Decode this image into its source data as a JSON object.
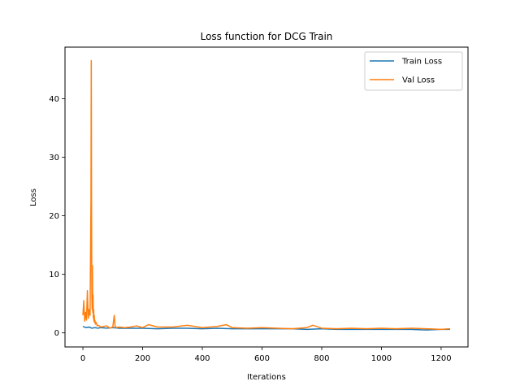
{
  "chart_data": {
    "type": "line",
    "title": "Loss function for DCG Train",
    "xlabel": "Iterations",
    "ylabel": "Loss",
    "xlim": [
      -60,
      1290
    ],
    "ylim": [
      -2.4,
      48.8
    ],
    "xticks": [
      0,
      200,
      400,
      600,
      800,
      1000,
      1200
    ],
    "yticks": [
      0,
      10,
      20,
      30,
      40
    ],
    "grid": false,
    "legend_position": "top-right",
    "series": [
      {
        "name": "Train Loss",
        "color": "#1f77b4",
        "x": [
          0,
          10,
          20,
          30,
          40,
          50,
          60,
          80,
          100,
          120,
          150,
          200,
          250,
          300,
          350,
          400,
          450,
          500,
          550,
          600,
          650,
          700,
          750,
          800,
          850,
          900,
          950,
          1000,
          1050,
          1100,
          1150,
          1200,
          1230
        ],
        "values": [
          1.1,
          0.9,
          1.0,
          0.8,
          0.9,
          0.8,
          0.9,
          0.8,
          0.9,
          0.8,
          0.8,
          0.8,
          0.7,
          0.8,
          0.8,
          0.7,
          0.8,
          0.7,
          0.7,
          0.7,
          0.7,
          0.7,
          0.6,
          0.7,
          0.6,
          0.6,
          0.6,
          0.6,
          0.6,
          0.6,
          0.5,
          0.6,
          0.6
        ]
      },
      {
        "name": "Val Loss",
        "color": "#ff7f0e",
        "x": [
          0,
          3,
          6,
          9,
          12,
          15,
          18,
          21,
          24,
          27,
          28,
          29,
          30,
          31,
          32,
          33,
          34,
          35,
          36,
          37,
          38,
          39,
          40,
          42,
          44,
          48,
          52,
          60,
          70,
          80,
          90,
          100,
          105,
          108,
          112,
          120,
          140,
          160,
          180,
          200,
          220,
          250,
          300,
          350,
          400,
          450,
          480,
          500,
          550,
          600,
          650,
          700,
          750,
          770,
          800,
          850,
          900,
          950,
          1000,
          1050,
          1100,
          1150,
          1200,
          1230
        ],
        "values": [
          3.0,
          5.5,
          2.0,
          3.5,
          2.2,
          7.2,
          2.5,
          4.0,
          3.0,
          22.5,
          46.5,
          20.0,
          6.0,
          4.0,
          11.5,
          3.5,
          6.5,
          2.5,
          4.0,
          2.0,
          3.0,
          1.8,
          2.2,
          1.5,
          1.8,
          1.2,
          1.3,
          1.0,
          1.1,
          1.2,
          0.8,
          1.0,
          3.0,
          1.1,
          0.9,
          1.0,
          0.9,
          1.0,
          1.2,
          0.9,
          1.4,
          1.0,
          1.0,
          1.3,
          0.9,
          1.1,
          1.4,
          0.9,
          0.8,
          0.9,
          0.8,
          0.7,
          0.9,
          1.3,
          0.8,
          0.7,
          0.8,
          0.7,
          0.8,
          0.7,
          0.8,
          0.7,
          0.6,
          0.7
        ]
      }
    ]
  }
}
